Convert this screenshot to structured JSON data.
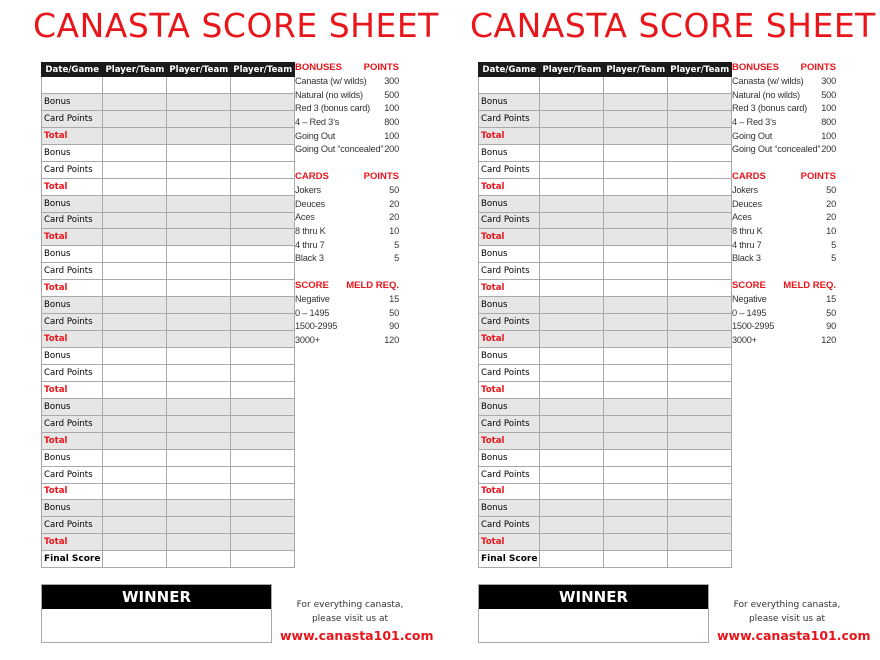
{
  "sheet": {
    "title": "CANASTA SCORE SHEET",
    "columns": [
      "Date/Game",
      "Player/Team",
      "Player/Team",
      "Player/Team"
    ],
    "round_labels": {
      "bonus": "Bonus",
      "card_points": "Card Points",
      "total": "Total"
    },
    "rounds": 9,
    "final_label": "Final Score",
    "bonuses": {
      "header": [
        "BONUSES",
        "POINTS"
      ],
      "rows": [
        [
          "Canasta (w/ wilds)",
          "300"
        ],
        [
          "Natural (no wilds)",
          "500"
        ],
        [
          "Red 3 (bonus card)",
          "100"
        ],
        [
          "4 – Red 3’s",
          "800"
        ],
        [
          "Going Out",
          "100"
        ],
        [
          "Going Out “concealed”",
          "200"
        ]
      ]
    },
    "cards": {
      "header": [
        "CARDS",
        "POINTS"
      ],
      "rows": [
        [
          "Jokers",
          "50"
        ],
        [
          "Deuces",
          "20"
        ],
        [
          "Aces",
          "20"
        ],
        [
          "8 thru K",
          "10"
        ],
        [
          "4 thru 7",
          "5"
        ],
        [
          "Black 3",
          "5"
        ]
      ]
    },
    "meld": {
      "header": [
        "SCORE",
        "MELD REQ."
      ],
      "rows": [
        [
          "Negative",
          "15"
        ],
        [
          "0 – 1495",
          "50"
        ],
        [
          "1500-2995",
          "90"
        ],
        [
          "3000+",
          "120"
        ]
      ]
    },
    "winner_label": "WINNER",
    "promo_line1": "For everything canasta,",
    "promo_line2": "please visit us at",
    "promo_url": "www.canasta101.com"
  },
  "sheet_count": 2,
  "colors": {
    "accent": "#e8151b",
    "header_bg": "#1a1a1a",
    "shaded_row": "#e6e6e6"
  }
}
